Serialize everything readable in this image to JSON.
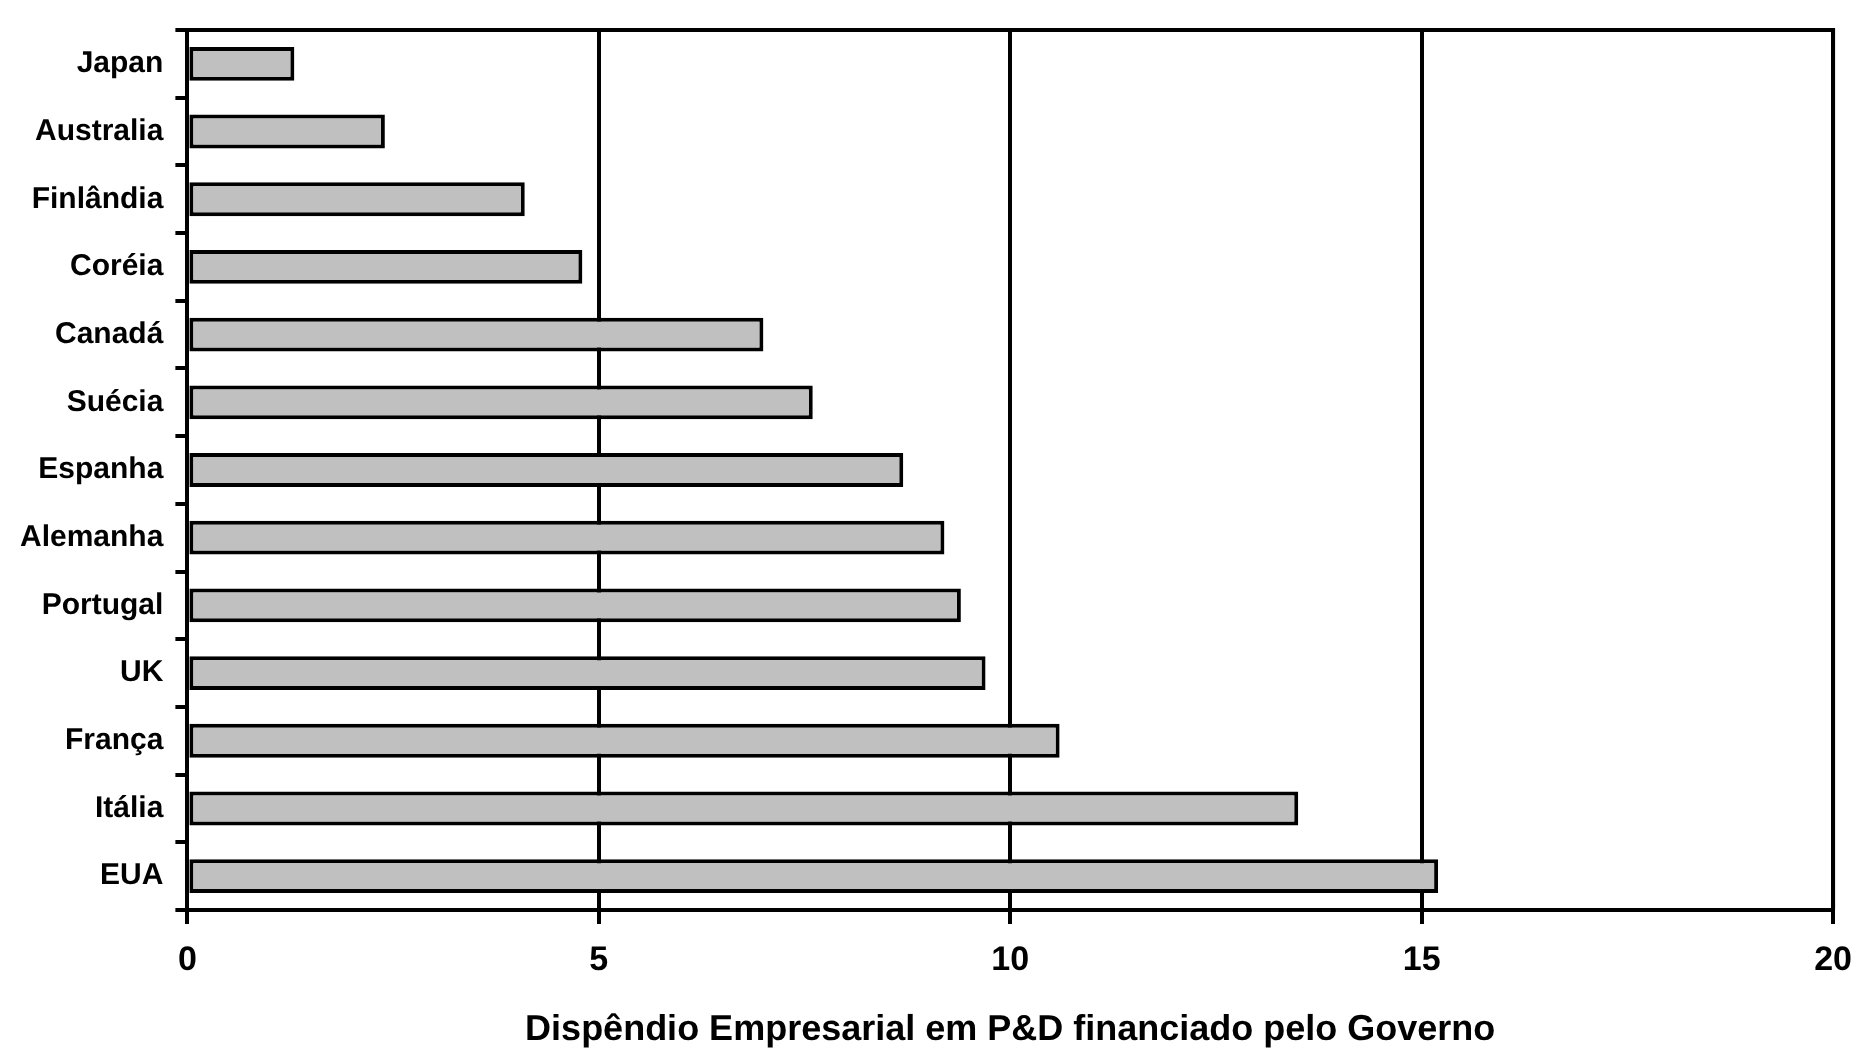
{
  "chart_data": {
    "type": "bar",
    "orientation": "horizontal",
    "xlabel": "Dispêndio Empresarial em P&D financiado pelo Governo",
    "categories": [
      "Japan",
      "Australia",
      "Finlândia",
      "Coréia",
      "Canadá",
      "Suécia",
      "Espanha",
      "Alemanha",
      "Portugal",
      "UK",
      "França",
      "Itália",
      "EUA"
    ],
    "values": [
      1.3,
      2.4,
      4.1,
      4.8,
      7.0,
      7.6,
      8.7,
      9.2,
      9.4,
      9.7,
      10.6,
      13.5,
      15.2
    ],
    "color": "#c0c0c0",
    "xlim": [
      0,
      20
    ],
    "xticks": [
      0,
      5,
      10,
      15,
      20
    ],
    "grid": "x"
  }
}
